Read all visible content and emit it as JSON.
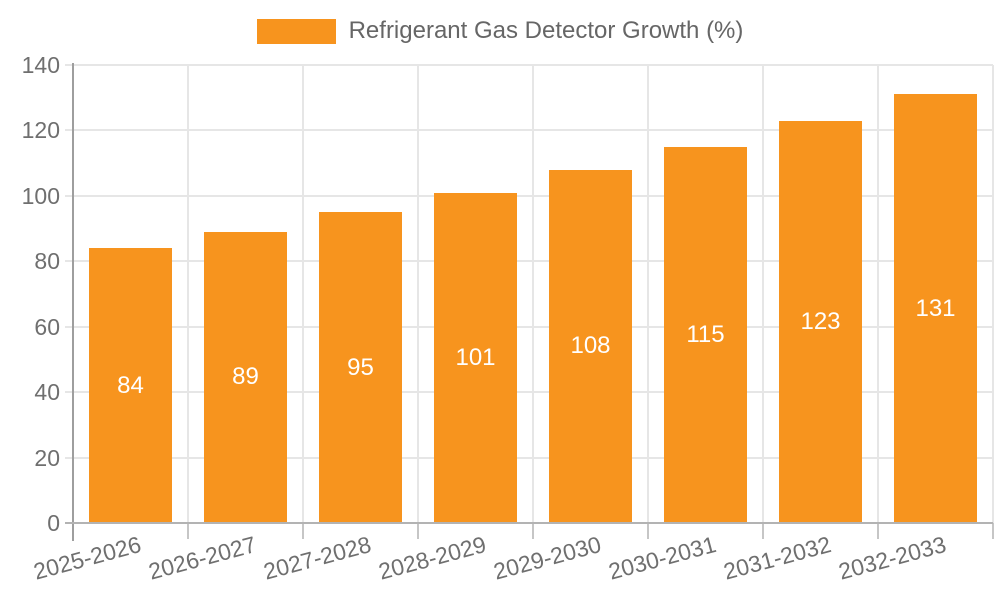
{
  "legend": {
    "label": "Refrigerant Gas Detector Growth (%)"
  },
  "chart_data": {
    "type": "bar",
    "title": "",
    "categories": [
      "2025-2026",
      "2026-2027",
      "2027-2028",
      "2028-2029",
      "2029-2030",
      "2030-2031",
      "2031-2032",
      "2032-2033"
    ],
    "series": [
      {
        "name": "Refrigerant Gas Detector Growth (%)",
        "values": [
          84,
          89,
          95,
          101,
          108,
          115,
          123,
          131
        ]
      }
    ],
    "xlabel": "",
    "ylabel": "",
    "ylim": [
      0,
      140
    ],
    "ytick_step": 20,
    "yticks": [
      0,
      20,
      40,
      60,
      80,
      100,
      120,
      140
    ],
    "grid": true,
    "legend_position": "top-center",
    "bar_color": "#F7941E",
    "bar_label_color": "#FFFFFF",
    "axis_text_color": "#6F6F6F",
    "gridline_color": "#E6E6E6",
    "axis_line_color": "#9E9E9E"
  }
}
